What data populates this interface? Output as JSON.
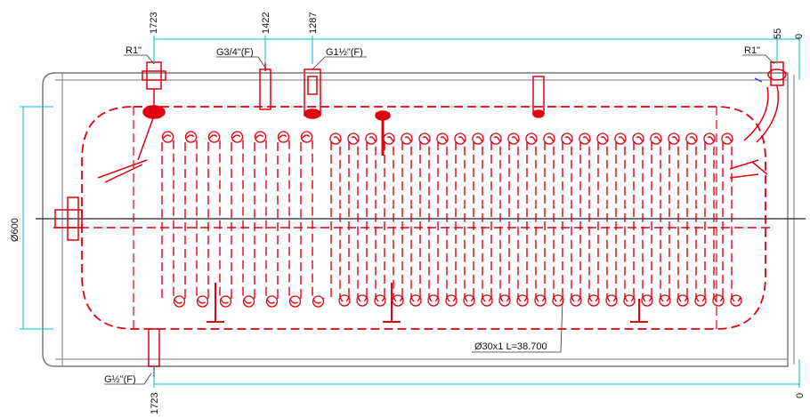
{
  "dimensions": {
    "top_1723": "1723",
    "top_1422": "1422",
    "top_1287": "1287",
    "top_55": "55",
    "top_0": "0",
    "bottom_1723": "1723",
    "bottom_0": "0",
    "diameter": "Ø600"
  },
  "labels": {
    "r1_left": "R1\"",
    "g34": "G3/4\"(F)",
    "g112": "G1½\"(F)",
    "r1_right": "R1\"",
    "g12": "G½\"(F)",
    "coil": "Ø30x1 L=38.700"
  }
}
